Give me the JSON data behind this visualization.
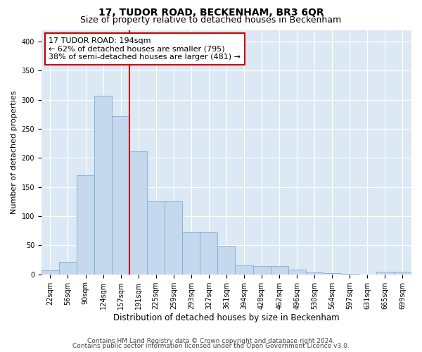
{
  "title": "17, TUDOR ROAD, BECKENHAM, BR3 6QR",
  "subtitle": "Size of property relative to detached houses in Beckenham",
  "xlabel": "Distribution of detached houses by size in Beckenham",
  "ylabel": "Number of detached properties",
  "bin_labels": [
    "22sqm",
    "56sqm",
    "90sqm",
    "124sqm",
    "157sqm",
    "191sqm",
    "225sqm",
    "259sqm",
    "293sqm",
    "327sqm",
    "361sqm",
    "394sqm",
    "428sqm",
    "462sqm",
    "496sqm",
    "530sqm",
    "564sqm",
    "597sqm",
    "631sqm",
    "665sqm",
    "699sqm"
  ],
  "bar_heights": [
    7,
    21,
    170,
    307,
    272,
    211,
    125,
    125,
    72,
    72,
    48,
    15,
    14,
    14,
    8,
    3,
    2,
    1,
    0,
    4,
    4
  ],
  "bar_color": "#c5d8ee",
  "bar_edge_color": "#7aadd4",
  "vline_color": "#cc0000",
  "vline_x": 4.5,
  "annotation_text": "17 TUDOR ROAD: 194sqm\n← 62% of detached houses are smaller (795)\n38% of semi-detached houses are larger (481) →",
  "annotation_box_facecolor": "#ffffff",
  "annotation_box_edgecolor": "#cc0000",
  "ylim": [
    0,
    420
  ],
  "yticks": [
    0,
    50,
    100,
    150,
    200,
    250,
    300,
    350,
    400
  ],
  "plot_background_color": "#dce9f5",
  "footer_line1": "Contains HM Land Registry data © Crown copyright and database right 2024.",
  "footer_line2": "Contains public sector information licensed under the Open Government Licence v3.0.",
  "title_fontsize": 10,
  "subtitle_fontsize": 9,
  "xlabel_fontsize": 8.5,
  "ylabel_fontsize": 8,
  "tick_fontsize": 7,
  "annotation_fontsize": 8,
  "footer_fontsize": 6.5
}
